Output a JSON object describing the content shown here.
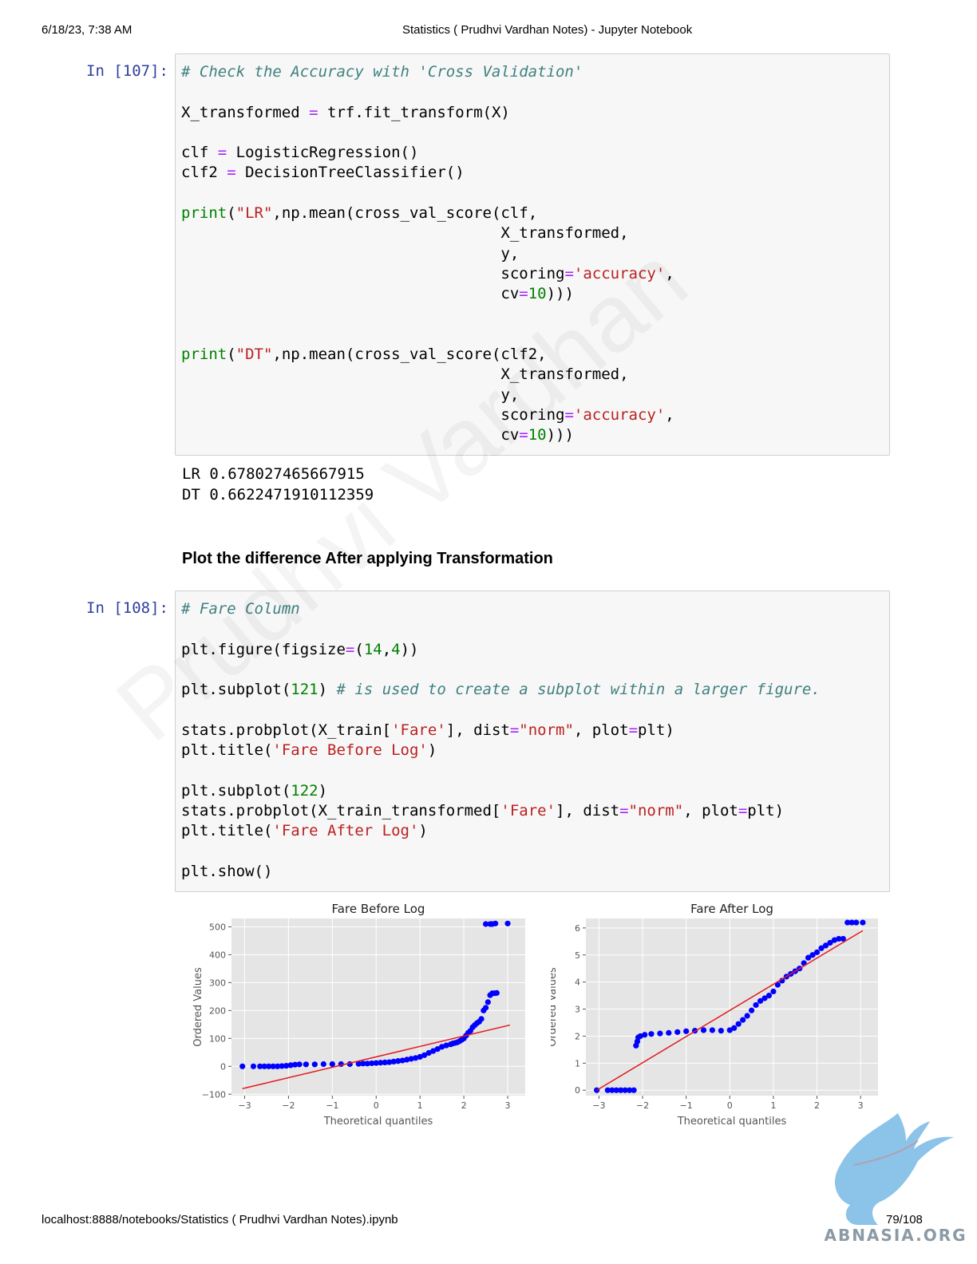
{
  "header": {
    "datetime": "6/18/23, 7:38 AM",
    "title": "Statistics ( Prudhvi Vardhan Notes) - Jupyter Notebook"
  },
  "footer": {
    "url": "localhost:8888/notebooks/Statistics ( Prudhvi Vardhan Notes).ipynb",
    "page": "79/108"
  },
  "watermark": {
    "text": "Prudhvi Vardhan",
    "logo_text": "ABNASIA.ORG"
  },
  "cells": [
    {
      "prompt": "In [107]:",
      "output": [
        "LR 0.678027465667915",
        "DT 0.6622471910112359"
      ]
    },
    {
      "prompt": "In [108]:"
    }
  ],
  "markdown": {
    "heading": "Plot the difference After applying Transformation"
  },
  "code107": {
    "comment": "# Check the Accuracy with 'Cross Validation'",
    "l1a": "X_transformed ",
    "l1b": "=",
    "l1c": " trf.fit_transform(X)",
    "l2a": "clf ",
    "l2b": "=",
    "l2c": " LogisticRegression()",
    "l3a": "clf2 ",
    "l3b": "=",
    "l3c": " DecisionTreeClassifier()",
    "p1a": "print",
    "p1b": "(",
    "p1s": "\"LR\"",
    "p1c": ",np.mean(cross_val_score(clf,",
    "p2a": "print",
    "p2b": "(",
    "p2s": "\"DT\"",
    "p2c": ",np.mean(cross_val_score(clf2,",
    "xt": "X_transformed,",
    "y": "y,",
    "sc": "scoring",
    "eq": "=",
    "acc": "'accuracy'",
    "comma": ",",
    "cv": "cv",
    "ten": "10",
    "close": ")))"
  },
  "code108": {
    "comment1": "# Fare Column",
    "fig_a": "plt.figure(figsize",
    "fig_b": "=",
    "fig_c": "(",
    "fig_d": "14",
    "fig_e": ",",
    "fig_f": "4",
    "fig_g": "))",
    "sub_a": "plt.subplot(",
    "sub_b": "121",
    "sub_c": ") ",
    "sub_comment": "# is used to create a subplot within a larger figure.",
    "pp1_a": "stats.probplot(X_train[",
    "fare": "'Fare'",
    "pp1_b": "], dist",
    "eq": "=",
    "norm": "\"norm\"",
    "pp_c": ", plot",
    "pp_d": "plt)",
    "t1_a": "plt.title(",
    "t1_s": "'Fare Before Log'",
    "t1_b": ")",
    "sub2_a": "plt.subplot(",
    "sub2_b": "122",
    "sub2_c": ")",
    "pp2_a": "stats.probplot(X_train_transformed[",
    "t2_a": "plt.title(",
    "t2_s": "'Fare After Log'",
    "t2_b": ")",
    "show": "plt.show()"
  },
  "chart_data": [
    {
      "type": "scatter",
      "title": "Fare Before Log",
      "xlabel": "Theoretical quantiles",
      "ylabel": "Ordered Values",
      "xlim": [
        -3.3,
        3.4
      ],
      "ylim": [
        -105,
        530
      ],
      "xticks": [
        -3,
        -2,
        -1,
        0,
        1,
        2,
        3
      ],
      "yticks": [
        -100,
        0,
        100,
        200,
        300,
        400,
        500
      ],
      "fit_line": {
        "x": [
          -3.05,
          3.05
        ],
        "y": [
          -80,
          148
        ]
      },
      "points": {
        "x": [
          -3.05,
          -2.8,
          -2.65,
          -2.55,
          -2.45,
          -2.35,
          -2.25,
          -2.15,
          -2.05,
          -1.95,
          -1.85,
          -1.75,
          -1.6,
          -1.4,
          -1.2,
          -1.0,
          -0.8,
          -0.6,
          -0.4,
          -0.3,
          -0.2,
          -0.1,
          0.0,
          0.1,
          0.2,
          0.3,
          0.4,
          0.5,
          0.6,
          0.7,
          0.8,
          0.9,
          1.0,
          1.1,
          1.2,
          1.3,
          1.4,
          1.5,
          1.6,
          1.7,
          1.75,
          1.8,
          1.85,
          1.9,
          1.95,
          2.0,
          2.05,
          2.1,
          2.15,
          2.2,
          2.25,
          2.3,
          2.35,
          2.4,
          2.45,
          2.5,
          2.55,
          2.6,
          2.65,
          2.7,
          2.75,
          2.5,
          2.6,
          2.65,
          2.72,
          3.0
        ],
        "y": [
          0,
          0,
          0,
          0,
          0,
          0,
          0,
          1,
          2,
          4,
          6,
          7,
          7,
          7,
          8,
          8,
          8,
          8,
          9,
          10,
          10,
          11,
          12,
          13,
          14,
          15,
          17,
          19,
          21,
          24,
          27,
          30,
          34,
          40,
          48,
          55,
          62,
          70,
          75,
          79,
          82,
          84,
          86,
          90,
          95,
          100,
          110,
          120,
          127,
          140,
          148,
          155,
          160,
          170,
          200,
          210,
          230,
          255,
          262,
          262,
          263,
          510,
          510,
          510,
          512,
          512
        ]
      }
    },
    {
      "type": "scatter",
      "title": "Fare After Log",
      "xlabel": "Theoretical quantiles",
      "ylabel": "Ordered Values",
      "xlim": [
        -3.3,
        3.4
      ],
      "ylim": [
        -0.2,
        6.35
      ],
      "xticks": [
        -3,
        -2,
        -1,
        0,
        1,
        2,
        3
      ],
      "yticks": [
        0,
        1,
        2,
        3,
        4,
        5,
        6
      ],
      "fit_line": {
        "x": [
          -3.05,
          3.05
        ],
        "y": [
          0.0,
          5.9
        ]
      },
      "points": {
        "x": [
          -3.05,
          -2.8,
          -2.7,
          -2.6,
          -2.5,
          -2.4,
          -2.3,
          -2.2,
          -2.15,
          -2.12,
          -2.1,
          -2.05,
          -1.95,
          -1.8,
          -1.6,
          -1.4,
          -1.2,
          -1.0,
          -0.8,
          -0.6,
          -0.4,
          -0.2,
          0.0,
          0.1,
          0.2,
          0.3,
          0.4,
          0.5,
          0.6,
          0.7,
          0.8,
          0.9,
          1.0,
          1.1,
          1.2,
          1.3,
          1.4,
          1.5,
          1.6,
          1.7,
          1.8,
          1.9,
          2.0,
          2.1,
          2.2,
          2.3,
          2.4,
          2.5,
          2.6,
          2.7,
          2.8,
          2.9,
          3.05
        ],
        "y": [
          0,
          0,
          0,
          0,
          0,
          0,
          0,
          0,
          1.65,
          1.8,
          1.95,
          2.0,
          2.05,
          2.08,
          2.1,
          2.12,
          2.15,
          2.18,
          2.2,
          2.22,
          2.22,
          2.2,
          2.22,
          2.3,
          2.45,
          2.6,
          2.75,
          2.95,
          3.15,
          3.3,
          3.4,
          3.5,
          3.65,
          3.9,
          4.05,
          4.2,
          4.3,
          4.4,
          4.5,
          4.7,
          4.9,
          5.0,
          5.1,
          5.25,
          5.35,
          5.45,
          5.55,
          5.6,
          5.6,
          6.2,
          6.2,
          6.2,
          6.2
        ]
      }
    }
  ]
}
